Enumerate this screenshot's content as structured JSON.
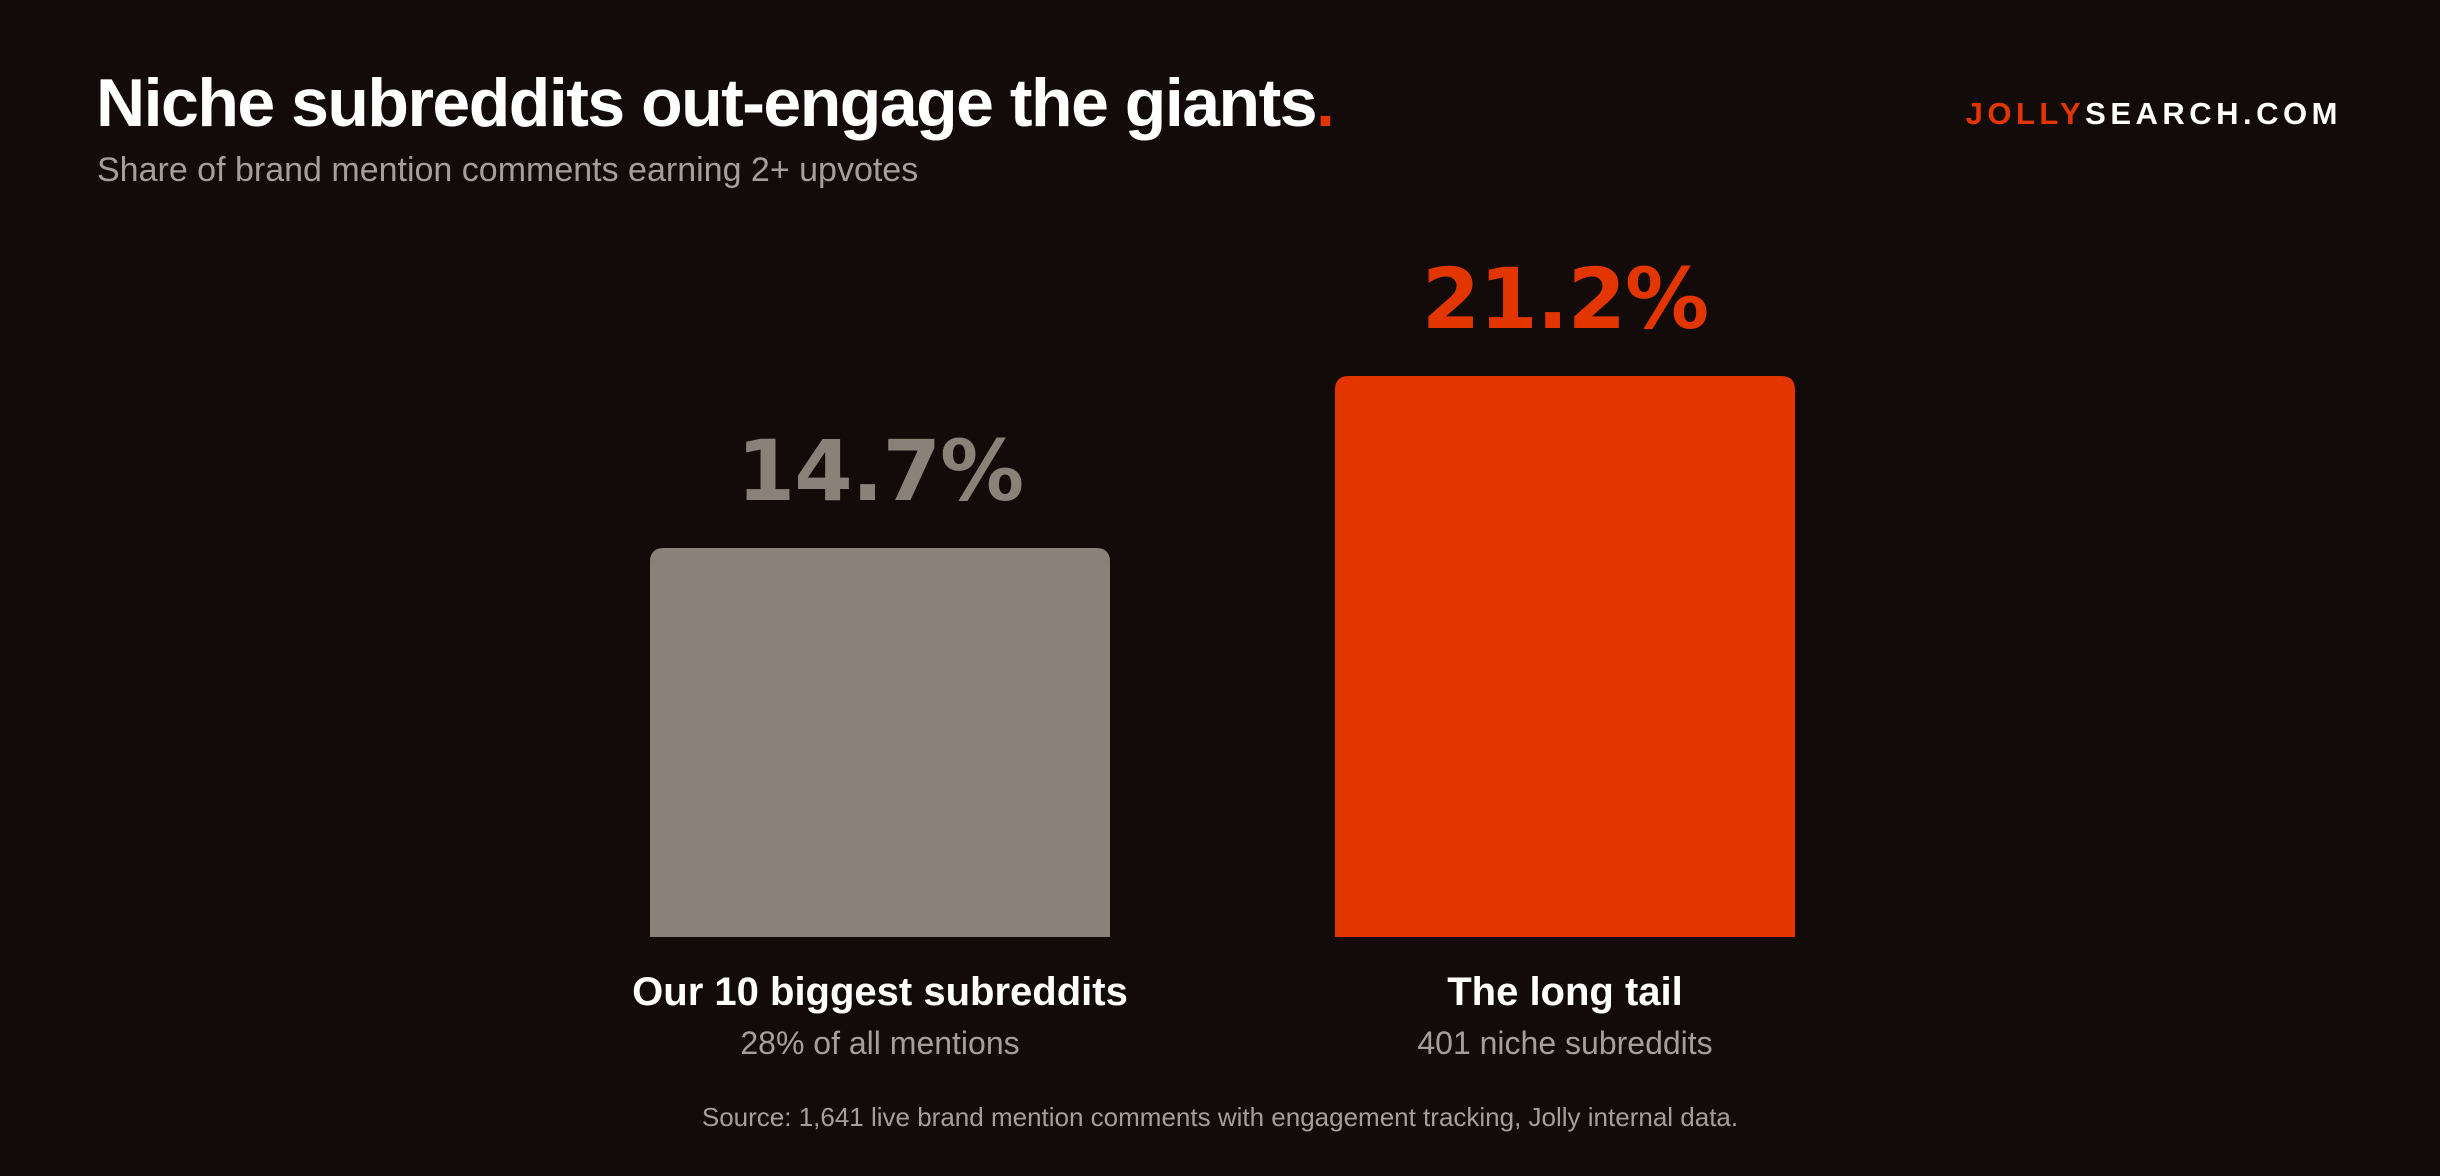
{
  "header": {
    "title": "Niche subreddits out-engage the giants",
    "title_dot": ".",
    "subtitle": "Share of brand mention comments earning 2+ upvotes",
    "brand_part1": "JOLLY",
    "brand_part2": "SEARCH.COM"
  },
  "chart_data": {
    "type": "bar",
    "categories": [
      "Our 10 biggest subreddits",
      "The long tail"
    ],
    "sublabels": [
      "28% of all mentions",
      "401 niche subreddits"
    ],
    "values": [
      14.7,
      21.2
    ],
    "value_labels": [
      "14.7%",
      "21.2%"
    ],
    "unit": "%",
    "colors": [
      "#8a8178",
      "#e23500"
    ],
    "value_label_colors": [
      "#8a8178",
      "#e23500"
    ],
    "ylim": [
      0,
      21.2
    ],
    "grid": false
  },
  "footer": {
    "source": "Source: 1,641 live brand mention comments with engagement tracking, Jolly internal data."
  },
  "colors": {
    "background": "#120b09",
    "accent": "#e23500",
    "muted": "#a59f99"
  }
}
